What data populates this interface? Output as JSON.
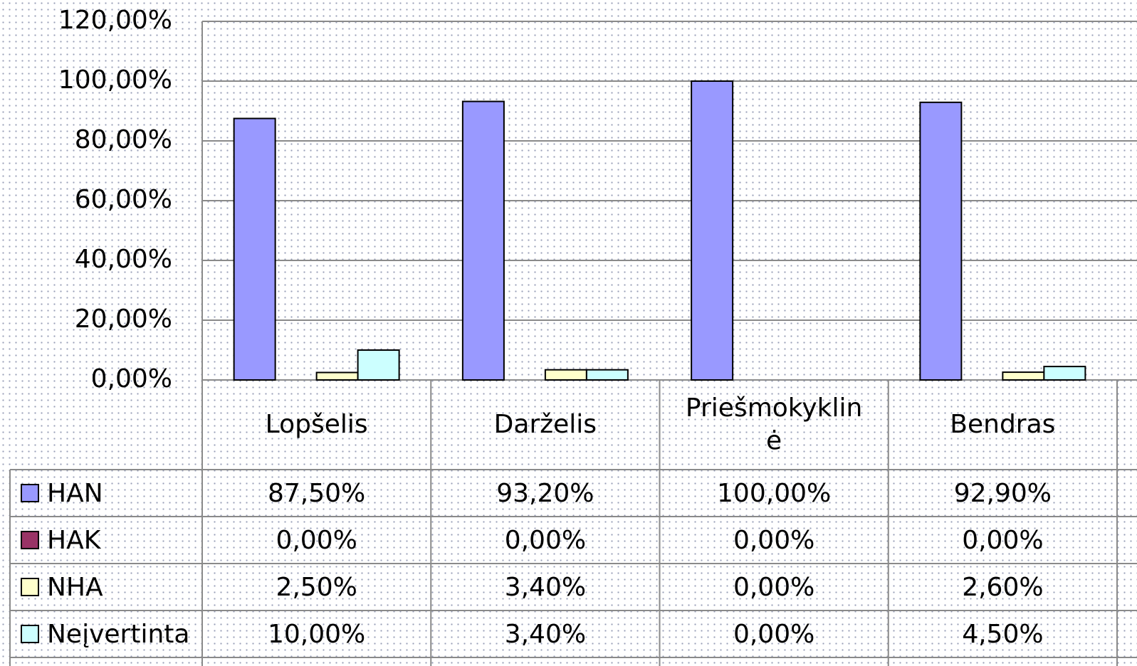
{
  "chart_data": {
    "type": "bar",
    "categories": [
      "Lopšelis",
      "Darželis",
      "Priešmokyklinė",
      "Bendras"
    ],
    "series": [
      {
        "name": "HAN",
        "color": "#9999ff",
        "values": [
          87.5,
          93.2,
          100,
          92.9
        ],
        "value_labels": [
          "87,50%",
          "93,20%",
          "100,00%",
          "92,90%"
        ]
      },
      {
        "name": "HAK",
        "color": "#993366",
        "values": [
          0,
          0,
          0,
          0
        ],
        "value_labels": [
          "0,00%",
          "0,00%",
          "0,00%",
          "0,00%"
        ]
      },
      {
        "name": "NHA",
        "color": "#ffffcc",
        "values": [
          2.5,
          3.4,
          0,
          2.6
        ],
        "value_labels": [
          "2,50%",
          "3,40%",
          "0,00%",
          "2,60%"
        ]
      },
      {
        "name": "Neįvertinta",
        "color": "#ccffff",
        "values": [
          10,
          3.4,
          0,
          4.5
        ],
        "value_labels": [
          "10,00%",
          "3,40%",
          "0,00%",
          "4,50%"
        ]
      }
    ],
    "ylim": [
      0,
      120
    ],
    "yticks": [
      {
        "value": 0,
        "label": "0,00%"
      },
      {
        "value": 20,
        "label": "20,00%"
      },
      {
        "value": 40,
        "label": "40,00%"
      },
      {
        "value": 60,
        "label": "60,00%"
      },
      {
        "value": 80,
        "label": "80,00%"
      },
      {
        "value": 100,
        "label": "100,00%"
      },
      {
        "value": 120,
        "label": "120,00%"
      }
    ],
    "grid": true,
    "data_table": true
  }
}
